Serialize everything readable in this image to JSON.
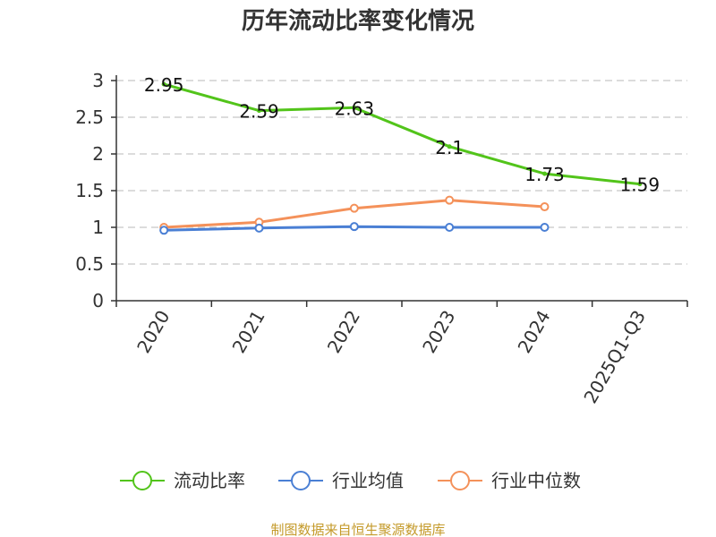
{
  "chart_data": {
    "type": "line",
    "title": "历年流动比率变化情况",
    "categories": [
      "2020",
      "2021",
      "2022",
      "2023",
      "2024",
      "2025Q1-Q3"
    ],
    "ylim": [
      0,
      3
    ],
    "yticks": [
      "0",
      "0.5",
      "1",
      "1.5",
      "2",
      "2.5",
      "3"
    ],
    "grid": true,
    "legend_position": "bottom",
    "series": [
      {
        "name": "流动比率",
        "color": "#52c41a",
        "values": [
          2.95,
          2.59,
          2.63,
          2.1,
          1.73,
          1.59
        ],
        "labels": [
          "2.95",
          "2.59",
          "2.63",
          "2.1",
          "1.73",
          "1.59"
        ]
      },
      {
        "name": "行业均值",
        "color": "#4a7fd4",
        "values": [
          0.96,
          0.99,
          1.01,
          1.0,
          1.0,
          null
        ]
      },
      {
        "name": "行业中位数",
        "color": "#f4915a",
        "values": [
          1.0,
          1.07,
          1.26,
          1.37,
          1.28,
          null
        ]
      }
    ]
  },
  "source": "制图数据来自恒生聚源数据库"
}
